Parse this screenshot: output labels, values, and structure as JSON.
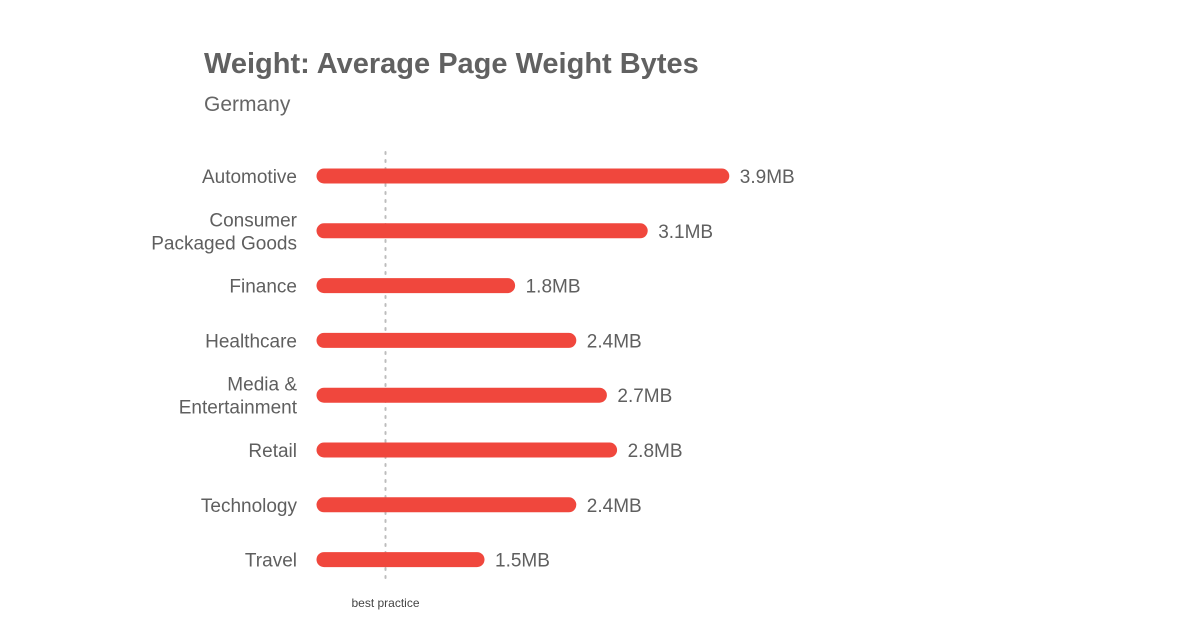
{
  "chart_data": {
    "type": "bar",
    "orientation": "horizontal",
    "title": "Weight: Average Page Weight Bytes",
    "subtitle": "Germany",
    "unit": "MB",
    "categories": [
      [
        "Automotive"
      ],
      [
        "Consumer",
        "Packaged Goods"
      ],
      [
        "Finance"
      ],
      [
        "Healthcare"
      ],
      [
        "Media &",
        "Entertainment"
      ],
      [
        "Retail"
      ],
      [
        "Technology"
      ],
      [
        "Travel"
      ]
    ],
    "values": [
      3.9,
      3.1,
      1.8,
      2.4,
      2.7,
      2.8,
      2.4,
      1.5
    ],
    "value_labels": [
      "3.9MB",
      "3.1MB",
      "1.8MB",
      "2.4MB",
      "2.7MB",
      "2.8MB",
      "2.4MB",
      "1.5MB"
    ],
    "bar_color": "#f0473d",
    "reference_line": {
      "label": "best practice",
      "value": 0.6,
      "color": "#bdbdbd"
    },
    "xlim": [
      0,
      3.9
    ],
    "grid": false,
    "legend": "none"
  }
}
